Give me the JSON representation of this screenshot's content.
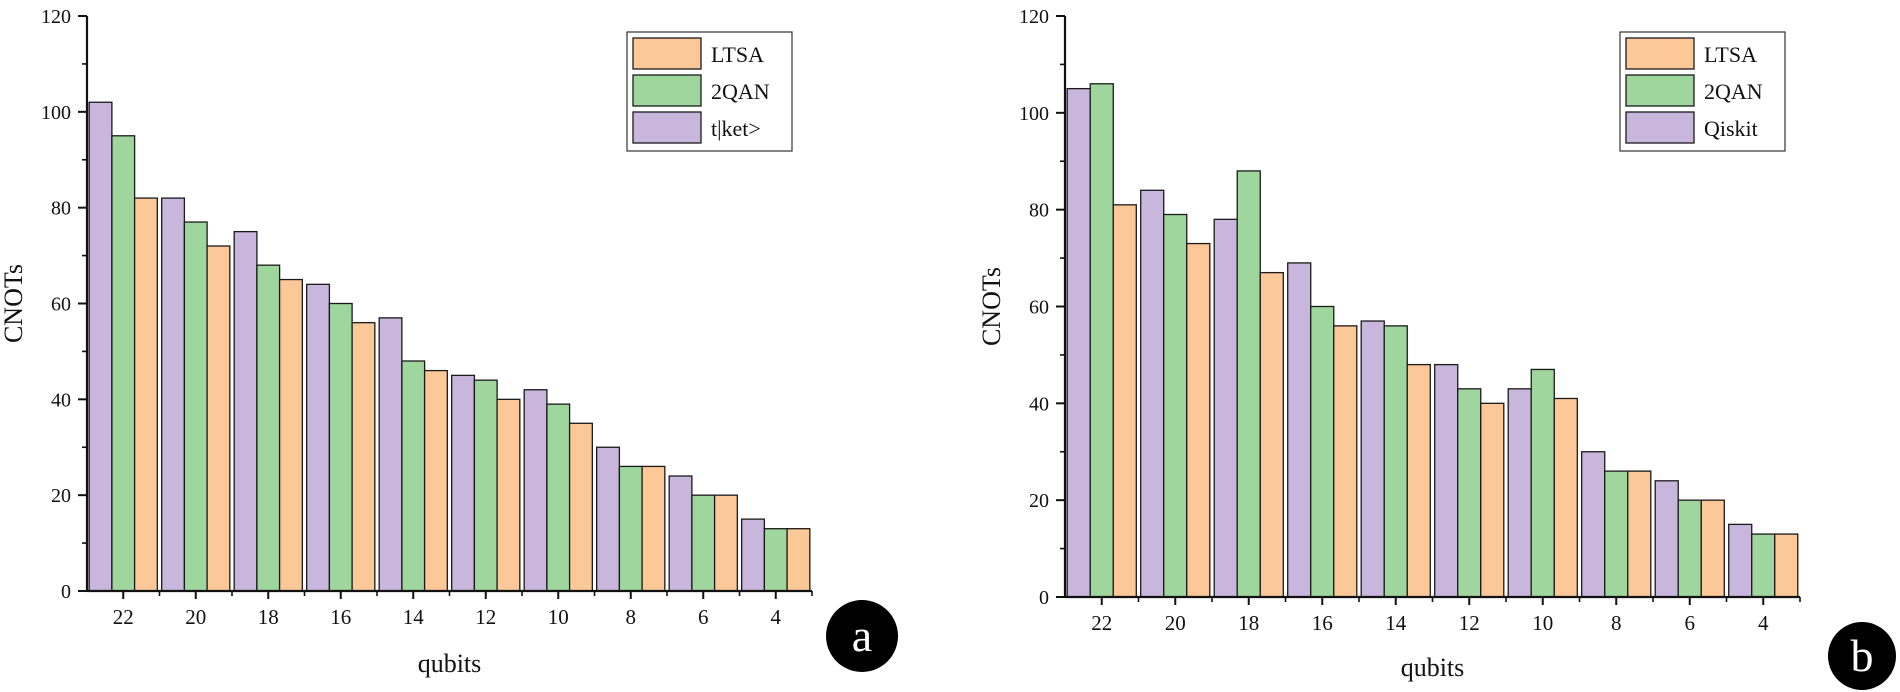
{
  "chart_data": [
    {
      "type": "bar",
      "panel_label": "a",
      "xlabel": "qubits",
      "ylabel": "CNOTs",
      "ylim": [
        0,
        120
      ],
      "yticks": [
        "0",
        "20",
        "40",
        "60",
        "80",
        "100",
        "120"
      ],
      "categories": [
        "22",
        "20",
        "18",
        "16",
        "14",
        "12",
        "10",
        "8",
        "6",
        "4"
      ],
      "series": [
        {
          "name": "t|ket>",
          "color": "#c9b6dd",
          "values": [
            102,
            82,
            75,
            64,
            57,
            45,
            42,
            30,
            24,
            15
          ]
        },
        {
          "name": "2QAN",
          "color": "#9ed69e",
          "values": [
            95,
            77,
            68,
            60,
            48,
            44,
            39,
            26,
            20,
            13
          ]
        },
        {
          "name": "LTSA",
          "color": "#fcc898",
          "values": [
            82,
            72,
            65,
            56,
            46,
            40,
            35,
            26,
            20,
            13
          ]
        }
      ],
      "legend": [
        "LTSA",
        "2QAN",
        "t|ket>"
      ],
      "legend_position": "top-right"
    },
    {
      "type": "bar",
      "panel_label": "b",
      "xlabel": "qubits",
      "ylabel": "CNOTs",
      "ylim": [
        0,
        120
      ],
      "yticks": [
        "0",
        "20",
        "40",
        "60",
        "80",
        "100",
        "120"
      ],
      "categories": [
        "22",
        "20",
        "18",
        "16",
        "14",
        "12",
        "10",
        "8",
        "6",
        "4"
      ],
      "series": [
        {
          "name": "Qiskit",
          "color": "#c9b6dd",
          "values": [
            105,
            84,
            78,
            69,
            57,
            48,
            43,
            30,
            24,
            15
          ]
        },
        {
          "name": "2QAN",
          "color": "#9ed69e",
          "values": [
            106,
            79,
            88,
            60,
            56,
            43,
            47,
            26,
            20,
            13
          ]
        },
        {
          "name": "LTSA",
          "color": "#fcc898",
          "values": [
            81,
            73,
            67,
            56,
            48,
            40,
            41,
            26,
            20,
            13
          ]
        }
      ],
      "legend": [
        "LTSA",
        "2QAN",
        "Qiskit"
      ],
      "legend_position": "top-right"
    }
  ]
}
